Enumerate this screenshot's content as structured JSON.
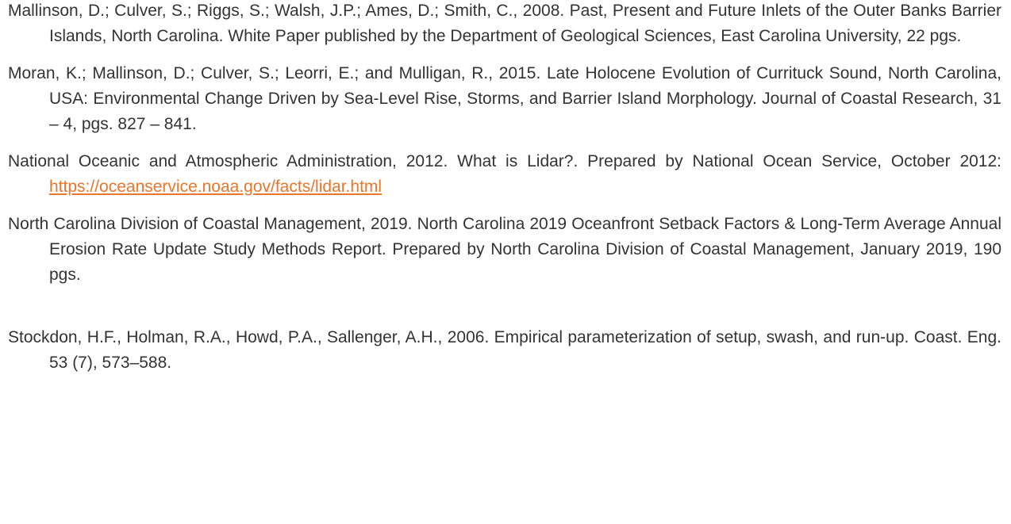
{
  "references": [
    {
      "text": "Mallinson, D.; Culver, S.; Riggs, S.; Walsh, J.P.; Ames, D.; Smith, C., 2008.  Past, Present and Future Inlets of the Outer Banks Barrier Islands, North Carolina.  White Paper published by the Department of Geological Sciences, East Carolina University, 22 pgs."
    },
    {
      "text": "Moran, K.; Mallinson, D.; Culver, S.; Leorri, E.; and Mulligan, R., 2015.  Late Holocene Evolution of Currituck Sound, North Carolina, USA: Environmental Change Driven by Sea-Level Rise, Storms, and Barrier Island Morphology.  Journal of Coastal Research, 31 – 4, pgs. 827 – 841."
    },
    {
      "text": "National Oceanic and Atmospheric Administration, 2012. What is Lidar?. Prepared by National Ocean Service, October 2012: ",
      "link": "https://oceanservice.noaa.gov/facts/lidar.html"
    },
    {
      "text": "North Carolina Division of Coastal Management, 2019. North Carolina 2019 Oceanfront Setback Factors & Long-Term Average Annual Erosion Rate Update Study Methods Report. Prepared by North Carolina Division of Coastal Management, January 2019, 190 pgs."
    },
    {
      "text": "Stockdon, H.F., Holman, R.A., Howd, P.A., Sallenger, A.H., 2006. Empirical parameterization of setup, swash, and run-up. Coast. Eng. 53 (7), 573–588."
    }
  ]
}
